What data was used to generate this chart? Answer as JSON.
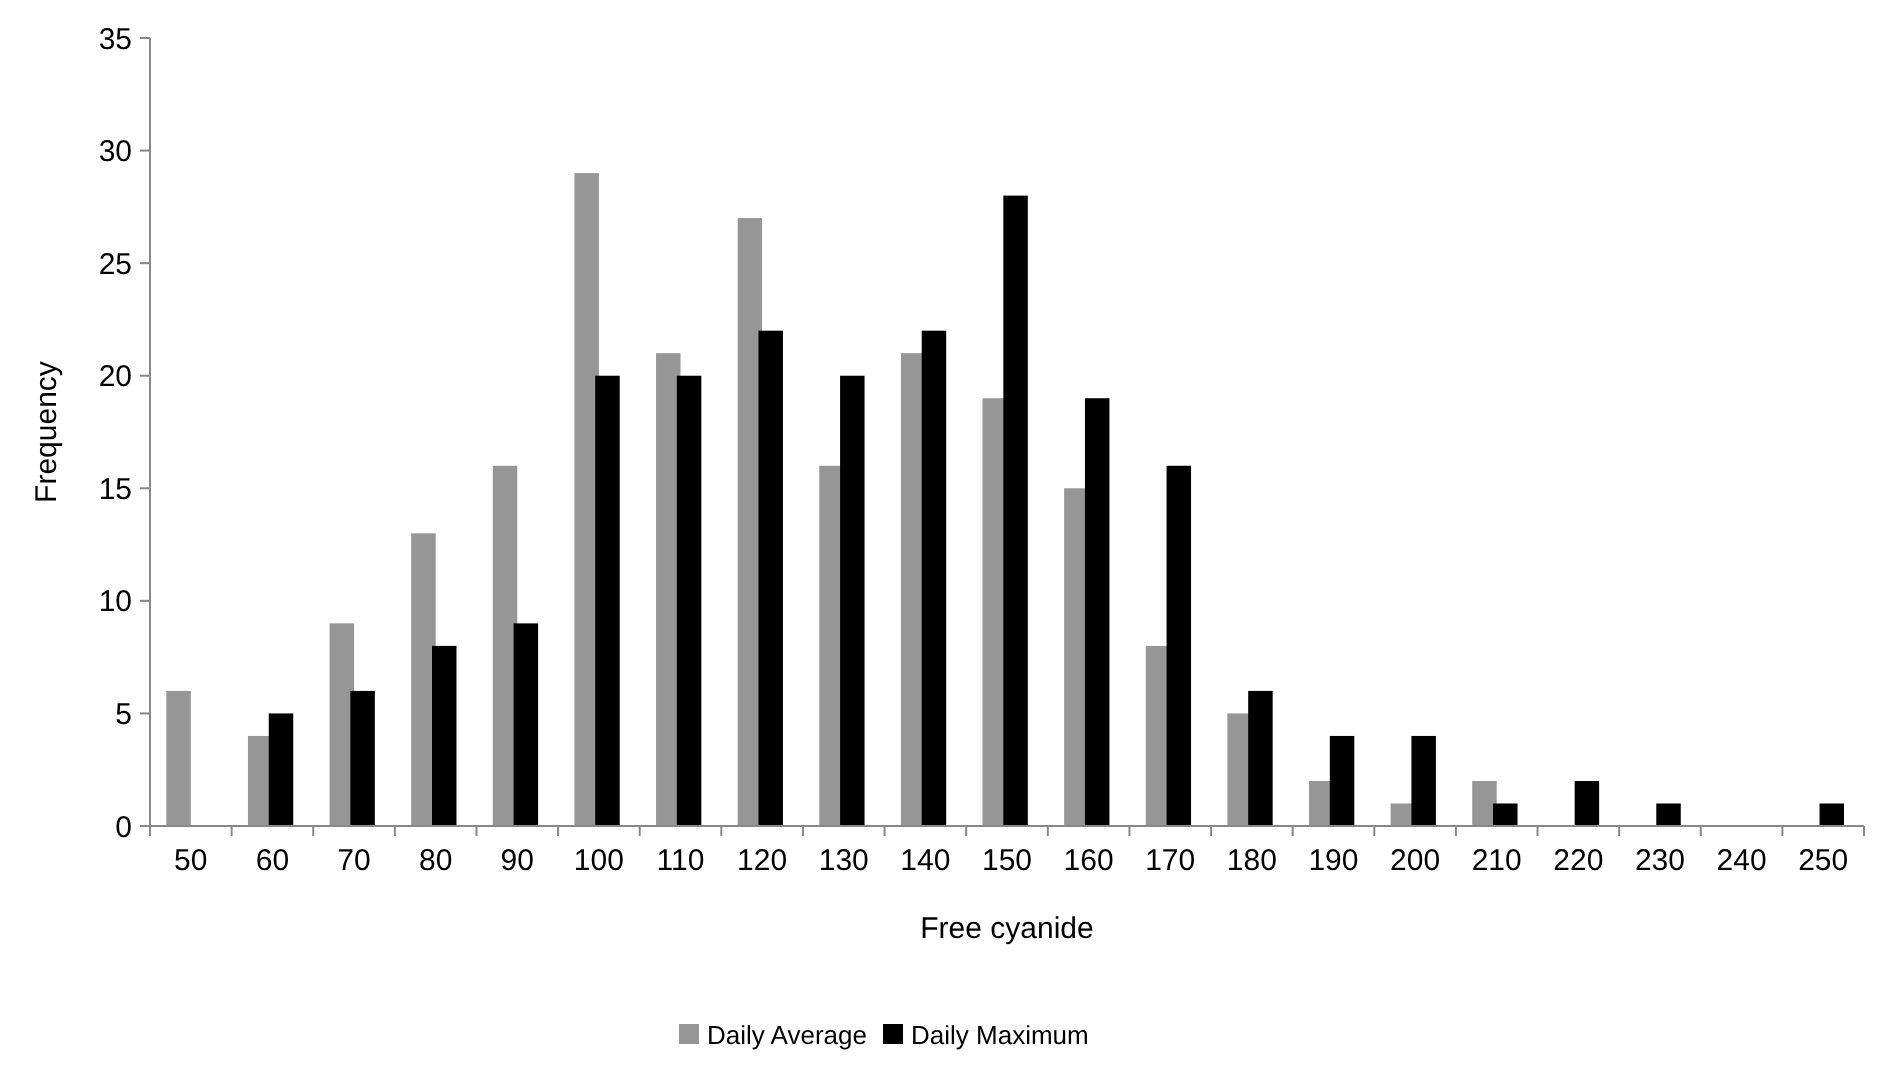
{
  "chart_data": {
    "type": "bar",
    "xlabel": "Free cyanide",
    "ylabel": "Frequency",
    "categories": [
      "50",
      "60",
      "70",
      "80",
      "90",
      "100",
      "110",
      "120",
      "130",
      "140",
      "150",
      "160",
      "170",
      "180",
      "190",
      "200",
      "210",
      "220",
      "230",
      "240",
      "250"
    ],
    "series": [
      {
        "name": "Daily Average",
        "color": "#969696",
        "values": [
          6,
          4,
          9,
          13,
          16,
          29,
          21,
          27,
          16,
          21,
          19,
          15,
          8,
          5,
          2,
          1,
          2,
          0,
          0,
          0,
          0
        ]
      },
      {
        "name": "Daily Maximum",
        "color": "#000000",
        "values": [
          0,
          5,
          6,
          8,
          9,
          20,
          20,
          22,
          20,
          22,
          28,
          19,
          16,
          6,
          4,
          4,
          1,
          2,
          1,
          0,
          1
        ]
      }
    ],
    "ylim": [
      0,
      35
    ],
    "yticks": [
      0,
      5,
      10,
      15,
      20,
      25,
      30,
      35
    ],
    "grid": false,
    "legend": "bottom"
  }
}
